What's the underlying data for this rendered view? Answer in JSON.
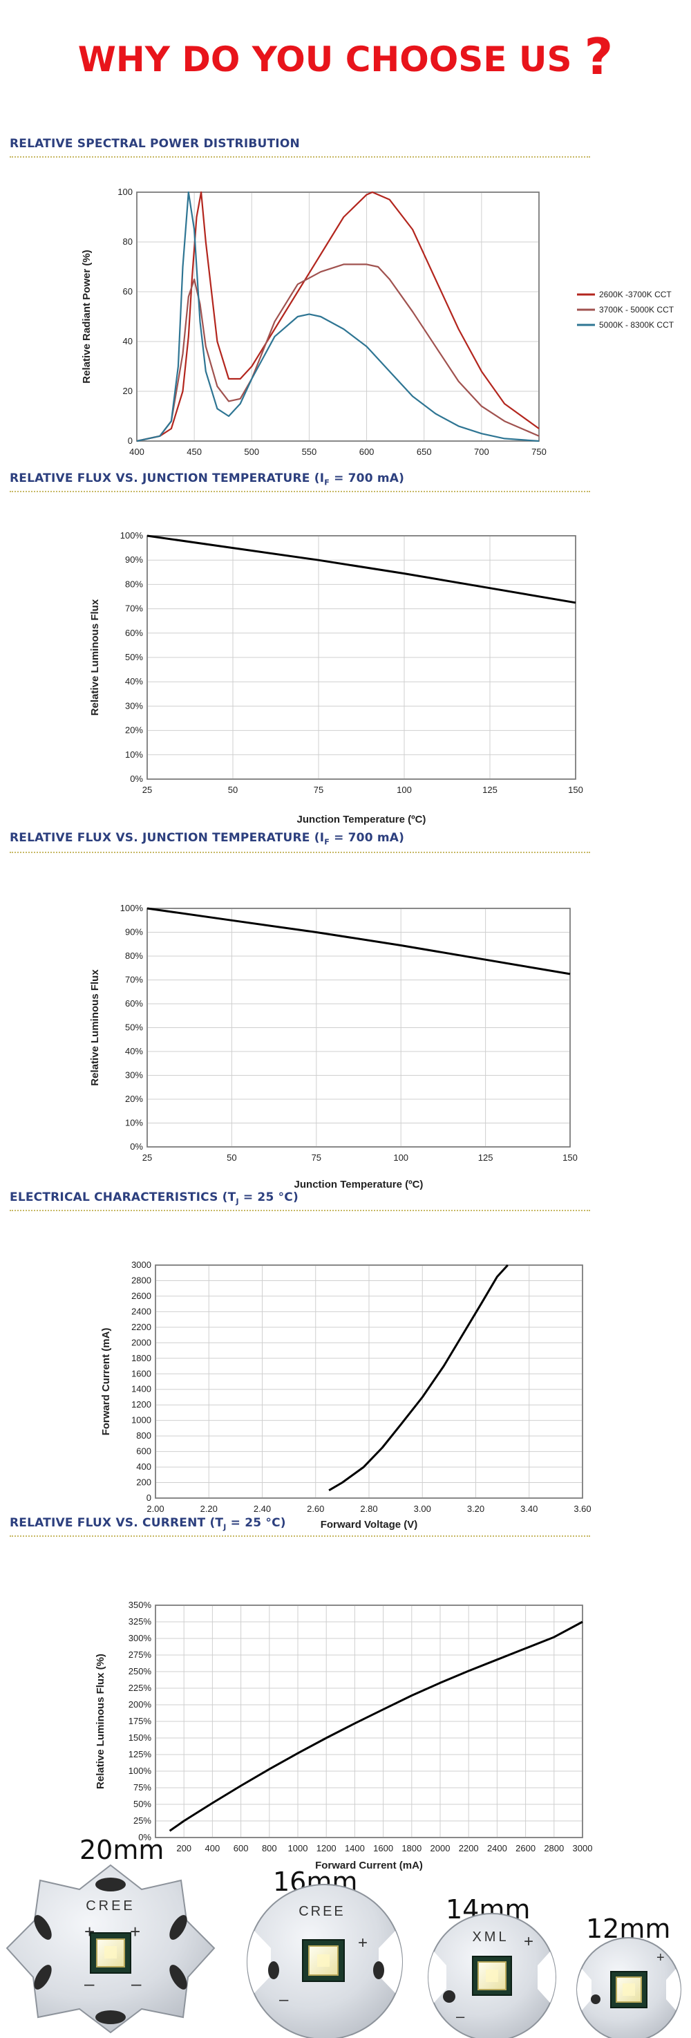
{
  "headline": {
    "text": "WHY DO YOU CHOOSE US",
    "mark": "?"
  },
  "sections": {
    "spd": {
      "title": "RELATIVE SPECTRAL POWER DISTRIBUTION"
    },
    "flux_temp_1": {
      "title_pre": "RELATIVE FLUX VS. JUNCTION TEMPERATURE (I",
      "title_sub": "F",
      "title_post": " = 700 mA)"
    },
    "flux_temp_2": {
      "title_pre": "RELATIVE FLUX VS. JUNCTION TEMPERATURE (I",
      "title_sub": "F",
      "title_post": " = 700 mA)"
    },
    "electrical": {
      "title_pre": "ELECTRICAL CHARACTERISTICS (T",
      "title_sub": "J",
      "title_post": " = 25 °C)"
    },
    "flux_current": {
      "title_pre": "RELATIVE FLUX VS. CURRENT (T",
      "title_sub": "J",
      "title_post": " = 25 °C)"
    }
  },
  "boards": [
    {
      "size": "20mm",
      "brand": "CREE"
    },
    {
      "size": "16mm",
      "brand": "CREE"
    },
    {
      "size": "14mm",
      "brand": "XML"
    },
    {
      "size": "12mm",
      "brand": ""
    }
  ],
  "colors": {
    "headline": "#e8141b",
    "section_title": "#2c3f7e",
    "dotted_rule": "#c7b864",
    "cct_warm": "#b3261e",
    "cct_neutral": "#a0524f",
    "cct_cool": "#2e7593"
  },
  "chart_data": [
    {
      "type": "line",
      "title": "RELATIVE SPECTRAL POWER DISTRIBUTION",
      "xlabel": "",
      "ylabel": "Relative Radiant Power (%)",
      "xlim": [
        400,
        750
      ],
      "ylim": [
        0,
        100
      ],
      "xticks": [
        400,
        450,
        500,
        550,
        600,
        650,
        700,
        750
      ],
      "yticks": [
        0,
        20,
        40,
        60,
        80,
        100
      ],
      "grid": true,
      "legend_position": "right",
      "series": [
        {
          "name": "2600K -3700K CCT",
          "color": "#b3261e",
          "x": [
            400,
            420,
            430,
            440,
            445,
            448,
            452,
            456,
            460,
            470,
            480,
            490,
            500,
            520,
            540,
            560,
            580,
            600,
            605,
            620,
            640,
            660,
            680,
            700,
            720,
            750
          ],
          "y": [
            0,
            2,
            5,
            20,
            42,
            65,
            90,
            100,
            80,
            40,
            25,
            25,
            30,
            45,
            60,
            75,
            90,
            99,
            100,
            97,
            85,
            65,
            45,
            28,
            15,
            5
          ]
        },
        {
          "name": "3700K - 5000K CCT",
          "color": "#a0524f",
          "x": [
            400,
            420,
            430,
            440,
            445,
            450,
            455,
            460,
            470,
            480,
            490,
            500,
            520,
            540,
            560,
            580,
            600,
            610,
            620,
            640,
            660,
            680,
            700,
            720,
            750
          ],
          "y": [
            0,
            2,
            8,
            35,
            58,
            65,
            55,
            38,
            22,
            16,
            17,
            25,
            48,
            63,
            68,
            71,
            71,
            70,
            65,
            52,
            38,
            24,
            14,
            8,
            2
          ]
        },
        {
          "name": "5000K - 8300K CCT",
          "color": "#2e7593",
          "x": [
            400,
            420,
            430,
            436,
            440,
            445,
            450,
            455,
            460,
            470,
            480,
            490,
            500,
            520,
            540,
            550,
            560,
            580,
            600,
            620,
            640,
            660,
            680,
            700,
            720,
            750
          ],
          "y": [
            0,
            2,
            8,
            30,
            70,
            100,
            85,
            48,
            28,
            13,
            10,
            15,
            25,
            42,
            50,
            51,
            50,
            45,
            38,
            28,
            18,
            11,
            6,
            3,
            1,
            0
          ]
        }
      ]
    },
    {
      "type": "line",
      "title": "RELATIVE FLUX VS. JUNCTION TEMPERATURE (IF = 700 mA)",
      "xlabel": "Junction Temperature (ºC)",
      "ylabel": "Relative Luminous Flux",
      "xlim": [
        25,
        150
      ],
      "ylim": [
        0,
        100
      ],
      "xticks": [
        25,
        50,
        75,
        100,
        125,
        150
      ],
      "yticks": [
        0,
        10,
        20,
        30,
        40,
        50,
        60,
        70,
        80,
        90,
        100
      ],
      "ytick_labels": [
        "0%",
        "10%",
        "20%",
        "30%",
        "40%",
        "50%",
        "60%",
        "70%",
        "80%",
        "90%",
        "100%"
      ],
      "grid": true,
      "series": [
        {
          "x": [
            25,
            50,
            75,
            100,
            125,
            150
          ],
          "y": [
            100,
            95,
            90,
            84.5,
            78.5,
            72.5
          ]
        }
      ]
    },
    {
      "type": "line",
      "title": "RELATIVE FLUX VS. JUNCTION TEMPERATURE (IF = 700 mA)",
      "xlabel": "Junction Temperature (ºC)",
      "ylabel": "Relative Luminous Flux",
      "xlim": [
        25,
        150
      ],
      "ylim": [
        0,
        100
      ],
      "xticks": [
        25,
        50,
        75,
        100,
        125,
        150
      ],
      "yticks": [
        0,
        10,
        20,
        30,
        40,
        50,
        60,
        70,
        80,
        90,
        100
      ],
      "ytick_labels": [
        "0%",
        "10%",
        "20%",
        "30%",
        "40%",
        "50%",
        "60%",
        "70%",
        "80%",
        "90%",
        "100%"
      ],
      "grid": true,
      "series": [
        {
          "x": [
            25,
            50,
            75,
            100,
            125,
            150
          ],
          "y": [
            100,
            95,
            90,
            84.5,
            78.5,
            72.5
          ]
        }
      ]
    },
    {
      "type": "line",
      "title": "ELECTRICAL CHARACTERISTICS (TJ = 25 °C)",
      "xlabel": "Forward Voltage (V)",
      "ylabel": "Forward Current (mA)",
      "xlim": [
        2.0,
        3.6
      ],
      "ylim": [
        0,
        3000
      ],
      "xticks": [
        2.0,
        2.2,
        2.4,
        2.6,
        2.8,
        3.0,
        3.2,
        3.4,
        3.6
      ],
      "xtick_labels": [
        "2.00",
        "2.20",
        "2.40",
        "2.60",
        "2.80",
        "3.00",
        "3.20",
        "3.40",
        "3.60"
      ],
      "yticks": [
        0,
        200,
        400,
        600,
        800,
        1000,
        1200,
        1400,
        1600,
        1800,
        2000,
        2200,
        2400,
        2600,
        2800,
        3000
      ],
      "grid": true,
      "series": [
        {
          "x": [
            2.65,
            2.7,
            2.78,
            2.85,
            2.92,
            3.0,
            3.08,
            3.15,
            3.22,
            3.28,
            3.32
          ],
          "y": [
            100,
            200,
            400,
            650,
            950,
            1300,
            1700,
            2100,
            2500,
            2850,
            3000
          ]
        }
      ]
    },
    {
      "type": "line",
      "title": "RELATIVE FLUX VS. CURRENT (TJ = 25 °C)",
      "xlabel": "Forward Current (mA)",
      "ylabel": "Relative Luminous Flux (%)",
      "xlim": [
        0,
        3000
      ],
      "ylim": [
        0,
        350
      ],
      "xticks": [
        200,
        400,
        600,
        800,
        1000,
        1200,
        1400,
        1600,
        1800,
        2000,
        2200,
        2400,
        2600,
        2800,
        3000
      ],
      "yticks": [
        0,
        25,
        50,
        75,
        100,
        125,
        150,
        175,
        200,
        225,
        250,
        275,
        300,
        325,
        350
      ],
      "ytick_labels": [
        "0%",
        "25%",
        "50%",
        "75%",
        "100%",
        "125%",
        "150%",
        "175%",
        "200%",
        "225%",
        "250%",
        "275%",
        "300%",
        "325%",
        "350%"
      ],
      "grid": true,
      "series": [
        {
          "x": [
            100,
            200,
            400,
            600,
            800,
            1000,
            1200,
            1400,
            1600,
            1800,
            2000,
            2200,
            2400,
            2600,
            2800,
            3000
          ],
          "y": [
            10,
            25,
            52,
            78,
            103,
            127,
            150,
            172,
            193,
            214,
            233,
            251,
            268,
            285,
            302,
            325
          ]
        }
      ]
    }
  ]
}
